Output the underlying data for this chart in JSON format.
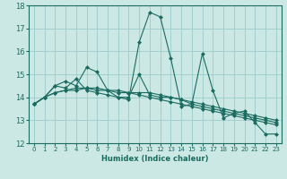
{
  "xlabel": "Humidex (Indice chaleur)",
  "background_color": "#cce8e4",
  "grid_color": "#99cccc",
  "line_color": "#1a6b60",
  "xlim": [
    -0.5,
    23.5
  ],
  "ylim": [
    12,
    18
  ],
  "yticks": [
    12,
    13,
    14,
    15,
    16,
    17,
    18
  ],
  "xticks": [
    0,
    1,
    2,
    3,
    4,
    5,
    6,
    7,
    8,
    9,
    10,
    11,
    12,
    13,
    14,
    15,
    16,
    17,
    18,
    19,
    20,
    21,
    22,
    23
  ],
  "series": [
    [
      13.7,
      14.0,
      14.5,
      14.7,
      14.5,
      15.3,
      15.1,
      14.3,
      14.0,
      13.9,
      16.4,
      17.7,
      17.5,
      15.7,
      13.6,
      13.7,
      15.9,
      14.3,
      13.1,
      13.3,
      13.4,
      12.9,
      12.4,
      12.4
    ],
    [
      13.7,
      14.0,
      14.5,
      14.4,
      14.8,
      14.3,
      14.2,
      14.1,
      14.0,
      14.0,
      15.0,
      14.1,
      14.0,
      14.0,
      13.9,
      13.8,
      13.7,
      13.6,
      13.5,
      13.4,
      13.3,
      13.2,
      13.1,
      13.0
    ],
    [
      13.7,
      14.0,
      14.2,
      14.3,
      14.3,
      14.4,
      14.3,
      14.3,
      14.2,
      14.2,
      14.2,
      14.2,
      14.1,
      14.0,
      13.9,
      13.7,
      13.6,
      13.5,
      13.4,
      13.3,
      13.2,
      13.1,
      13.0,
      12.9
    ],
    [
      13.7,
      14.0,
      14.2,
      14.3,
      14.4,
      14.4,
      14.4,
      14.3,
      14.3,
      14.2,
      14.1,
      14.0,
      13.9,
      13.8,
      13.7,
      13.6,
      13.5,
      13.4,
      13.3,
      13.2,
      13.1,
      13.0,
      12.9,
      12.8
    ]
  ],
  "marker": "D",
  "markersize": 2.0,
  "linewidth": 0.8,
  "xlabel_fontsize": 6.0,
  "tick_fontsize": 5.0
}
